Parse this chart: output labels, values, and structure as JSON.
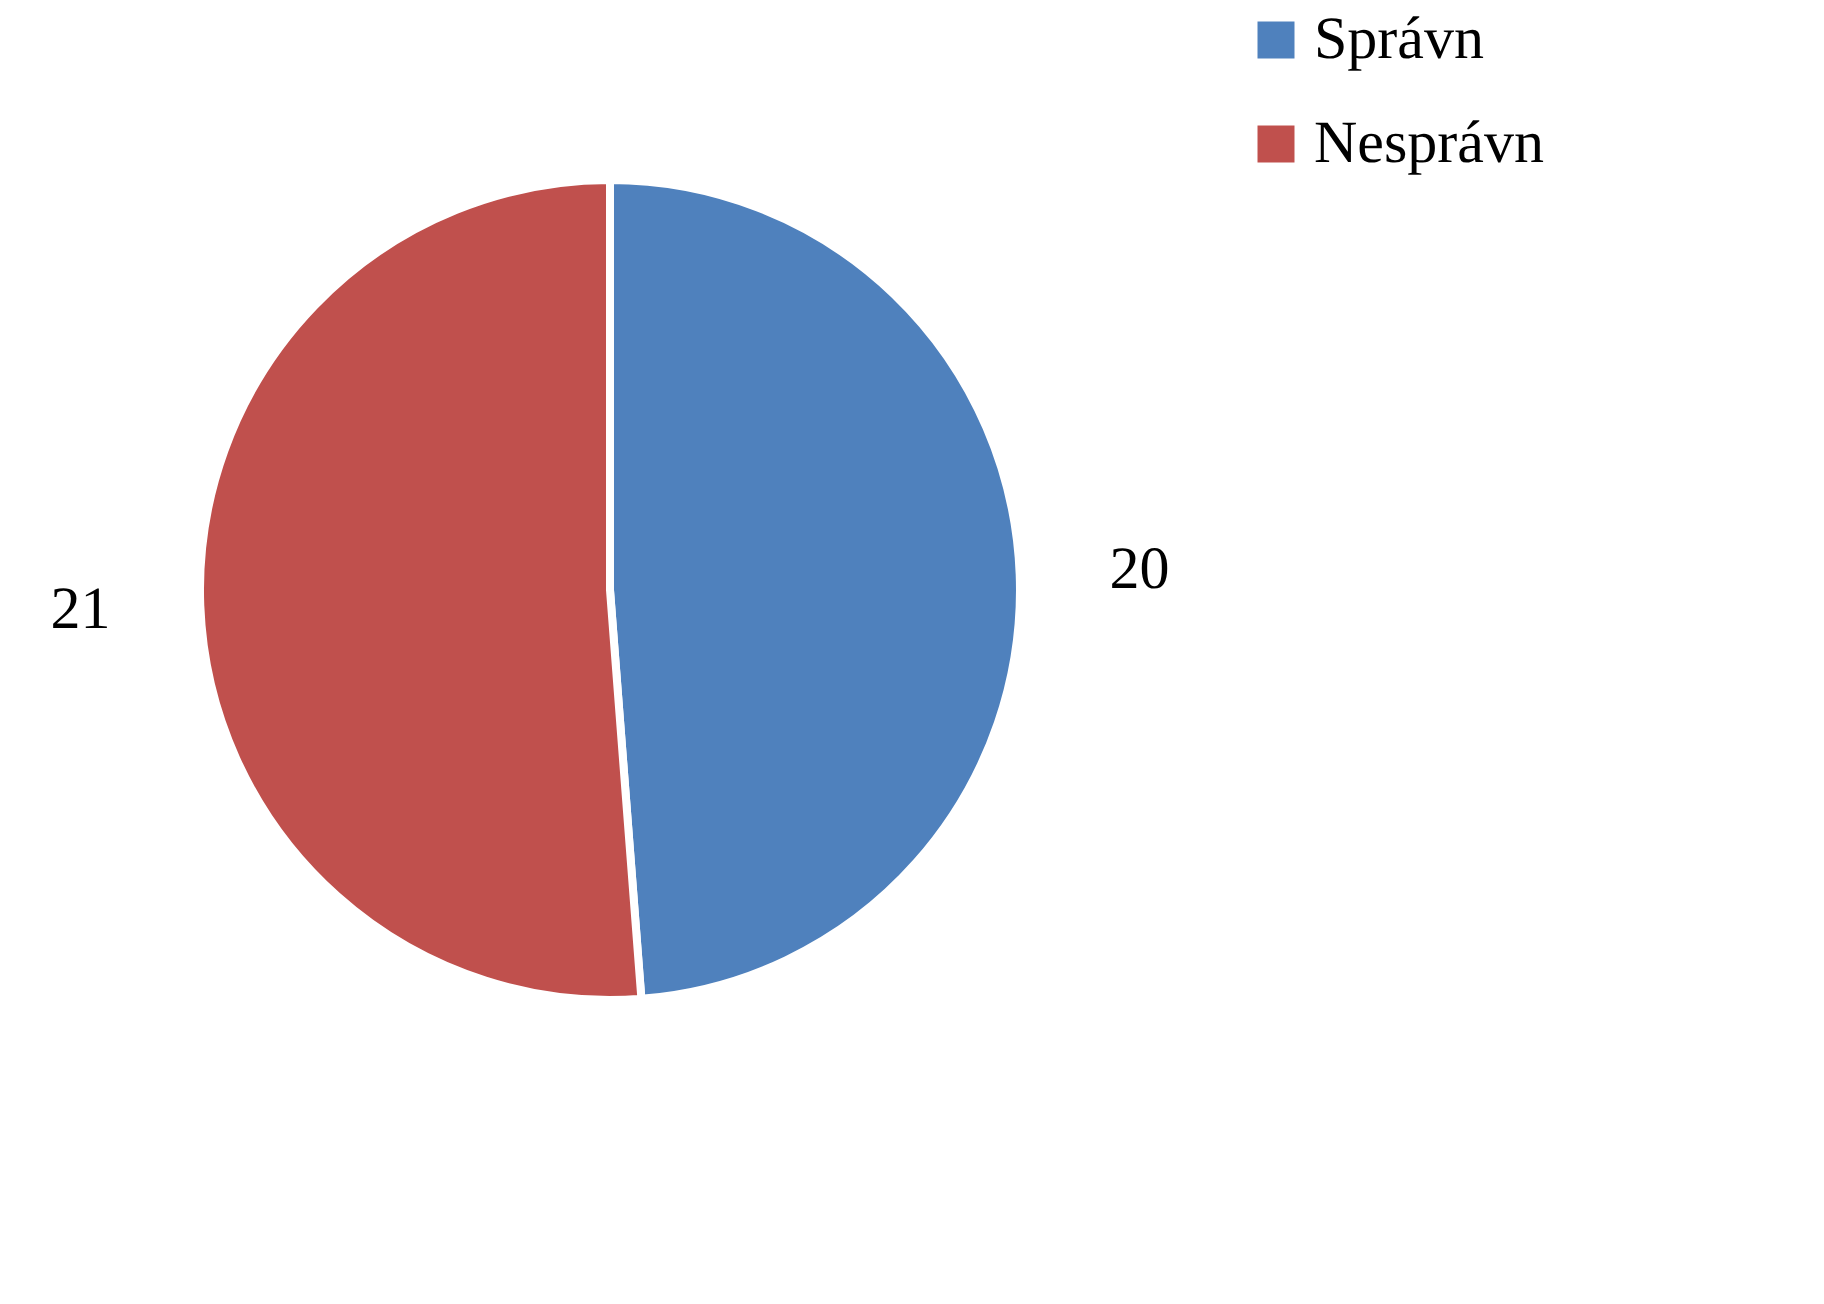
{
  "chart_data": {
    "type": "pie",
    "categories": [
      "Správn",
      "Nesprávn"
    ],
    "values": [
      20,
      21
    ],
    "colors": [
      "#4f81bd",
      "#c0504d"
    ],
    "data_labels": true,
    "legend": "right"
  }
}
